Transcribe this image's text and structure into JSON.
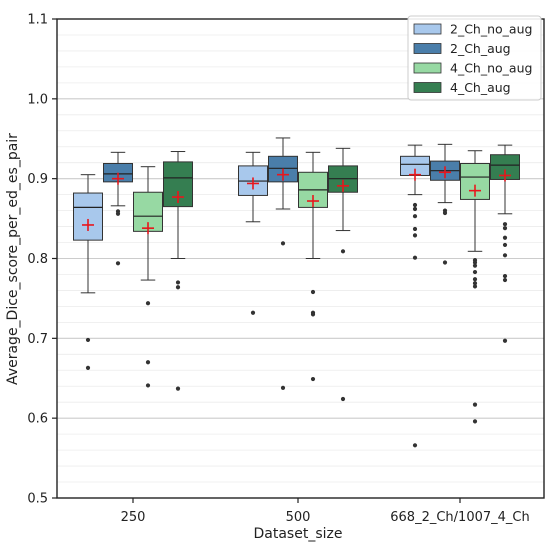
{
  "chart_data": {
    "type": "box",
    "xlabel": "Dataset_size",
    "ylabel": "Average_Dice_score_per_ed_es_pair",
    "categories": [
      "250",
      "500",
      "668_2_Ch/1007_4_Ch"
    ],
    "ylim": [
      0.5,
      1.1
    ],
    "yticks": [
      "0.5",
      "0.6",
      "0.7",
      "0.8",
      "0.9",
      "1.0",
      "1.1"
    ],
    "grid": "horizontal major and minor",
    "legend_position": "top-right",
    "mean_marker": "red plus",
    "series": [
      {
        "name": "2_Ch_no_aug",
        "color": "#a8c8ec",
        "boxes": [
          {
            "category": "250",
            "whislo": 0.757,
            "q1": 0.823,
            "median": 0.864,
            "q3": 0.882,
            "whishi": 0.905,
            "mean": 0.842,
            "fliers": [
              0.698,
              0.663
            ]
          },
          {
            "category": "500",
            "whislo": 0.846,
            "q1": 0.879,
            "median": 0.897,
            "q3": 0.916,
            "whishi": 0.933,
            "mean": 0.894,
            "fliers": [
              0.732
            ]
          },
          {
            "category": "668_2_Ch/1007_4_Ch",
            "whislo": 0.88,
            "q1": 0.904,
            "median": 0.918,
            "q3": 0.928,
            "whishi": 0.942,
            "mean": 0.905,
            "fliers": [
              0.867,
              0.862,
              0.853,
              0.837,
              0.829,
              0.801,
              0.566
            ]
          }
        ]
      },
      {
        "name": "2_Ch_aug",
        "color": "#4a7eaa",
        "boxes": [
          {
            "category": "250",
            "whislo": 0.866,
            "q1": 0.896,
            "median": 0.906,
            "q3": 0.919,
            "whishi": 0.933,
            "mean": 0.9,
            "fliers": [
              0.859,
              0.856,
              0.794
            ]
          },
          {
            "category": "500",
            "whislo": 0.862,
            "q1": 0.896,
            "median": 0.913,
            "q3": 0.928,
            "whishi": 0.951,
            "mean": 0.905,
            "fliers": [
              0.819,
              0.638
            ]
          },
          {
            "category": "668_2_Ch/1007_4_Ch",
            "whislo": 0.87,
            "q1": 0.898,
            "median": 0.91,
            "q3": 0.922,
            "whishi": 0.943,
            "mean": 0.908,
            "fliers": [
              0.86,
              0.857,
              0.795
            ]
          }
        ]
      },
      {
        "name": "4_Ch_no_aug",
        "color": "#97d9a3",
        "boxes": [
          {
            "category": "250",
            "whislo": 0.773,
            "q1": 0.834,
            "median": 0.853,
            "q3": 0.883,
            "whishi": 0.915,
            "mean": 0.838,
            "fliers": [
              0.744,
              0.67,
              0.641
            ]
          },
          {
            "category": "500",
            "whislo": 0.8,
            "q1": 0.864,
            "median": 0.886,
            "q3": 0.908,
            "whishi": 0.933,
            "mean": 0.872,
            "fliers": [
              0.758,
              0.732,
              0.73,
              0.649
            ]
          },
          {
            "category": "668_2_Ch/1007_4_Ch",
            "whislo": 0.809,
            "q1": 0.874,
            "median": 0.902,
            "q3": 0.919,
            "whishi": 0.935,
            "mean": 0.885,
            "fliers": [
              0.798,
              0.795,
              0.791,
              0.783,
              0.774,
              0.769,
              0.765,
              0.617,
              0.596
            ]
          }
        ]
      },
      {
        "name": "4_Ch_aug",
        "color": "#357e51",
        "boxes": [
          {
            "category": "250",
            "whislo": 0.8,
            "q1": 0.865,
            "median": 0.901,
            "q3": 0.921,
            "whishi": 0.934,
            "mean": 0.877,
            "fliers": [
              0.77,
              0.764,
              0.637
            ]
          },
          {
            "category": "500",
            "whislo": 0.835,
            "q1": 0.883,
            "median": 0.9,
            "q3": 0.916,
            "whishi": 0.938,
            "mean": 0.891,
            "fliers": [
              0.809,
              0.624
            ]
          },
          {
            "category": "668_2_Ch/1007_4_Ch",
            "whislo": 0.856,
            "q1": 0.899,
            "median": 0.917,
            "q3": 0.93,
            "whishi": 0.942,
            "mean": 0.904,
            "fliers": [
              0.843,
              0.838,
              0.826,
              0.817,
              0.804,
              0.778,
              0.773,
              0.697
            ]
          }
        ]
      }
    ]
  }
}
